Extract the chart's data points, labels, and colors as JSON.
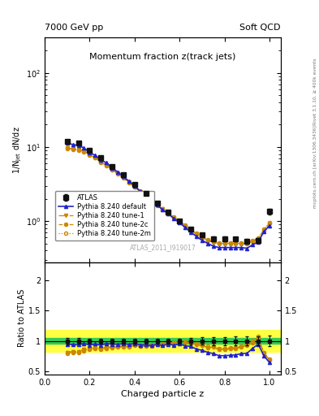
{
  "title": "Momentum fraction z(track jets)",
  "header_left": "7000 GeV pp",
  "header_right": "Soft QCD",
  "ylabel_main": "1/N$_\\mathrm{jet}$ dN/dz",
  "ylabel_ratio": "Ratio to ATLAS",
  "xlabel": "Charged particle z",
  "right_label_top": "Rivet 3.1.10, ≥ 400k events",
  "right_label_bottom": "mcplots.cern.ch [arXiv:1306.3436]",
  "watermark": "ATLAS_2011_I919017",
  "ylim_main": [
    0.28,
    300
  ],
  "ylim_ratio": [
    0.45,
    2.3
  ],
  "xlim": [
    0.0,
    1.05
  ],
  "atlas_x": [
    0.1,
    0.15,
    0.2,
    0.25,
    0.3,
    0.35,
    0.4,
    0.45,
    0.5,
    0.55,
    0.6,
    0.65,
    0.7,
    0.75,
    0.8,
    0.85,
    0.9,
    0.95,
    1.0
  ],
  "atlas_y": [
    11.8,
    11.2,
    9.0,
    7.2,
    5.5,
    4.2,
    3.1,
    2.35,
    1.75,
    1.32,
    1.0,
    0.78,
    0.65,
    0.58,
    0.58,
    0.57,
    0.54,
    0.55,
    1.35
  ],
  "atlas_yerr": [
    0.6,
    0.5,
    0.35,
    0.28,
    0.22,
    0.16,
    0.12,
    0.09,
    0.07,
    0.05,
    0.04,
    0.04,
    0.04,
    0.04,
    0.04,
    0.04,
    0.04,
    0.04,
    0.12
  ],
  "py_def_x": [
    0.1,
    0.125,
    0.15,
    0.175,
    0.2,
    0.225,
    0.25,
    0.275,
    0.3,
    0.325,
    0.35,
    0.375,
    0.4,
    0.425,
    0.45,
    0.475,
    0.5,
    0.525,
    0.55,
    0.575,
    0.6,
    0.625,
    0.65,
    0.675,
    0.7,
    0.725,
    0.75,
    0.775,
    0.8,
    0.825,
    0.85,
    0.875,
    0.9,
    0.925,
    0.95,
    0.975,
    1.0
  ],
  "py_def_y": [
    11.2,
    10.8,
    10.5,
    9.7,
    8.4,
    7.7,
    6.7,
    6.1,
    5.2,
    4.6,
    4.0,
    3.45,
    2.97,
    2.55,
    2.2,
    1.9,
    1.65,
    1.42,
    1.25,
    1.08,
    0.95,
    0.82,
    0.71,
    0.62,
    0.55,
    0.5,
    0.46,
    0.44,
    0.44,
    0.44,
    0.44,
    0.44,
    0.43,
    0.48,
    0.52,
    0.72,
    0.87
  ],
  "py_t1_x": [
    0.1,
    0.125,
    0.15,
    0.175,
    0.2,
    0.225,
    0.25,
    0.275,
    0.3,
    0.325,
    0.35,
    0.375,
    0.4,
    0.425,
    0.45,
    0.475,
    0.5,
    0.525,
    0.55,
    0.575,
    0.6,
    0.625,
    0.65,
    0.675,
    0.7,
    0.725,
    0.75,
    0.775,
    0.8,
    0.825,
    0.85,
    0.875,
    0.9,
    0.925,
    0.95,
    0.975,
    1.0
  ],
  "py_t1_y": [
    9.6,
    9.5,
    9.2,
    8.7,
    7.8,
    7.2,
    6.3,
    5.7,
    4.95,
    4.4,
    3.85,
    3.35,
    2.9,
    2.5,
    2.18,
    1.9,
    1.66,
    1.45,
    1.28,
    1.12,
    1.0,
    0.87,
    0.76,
    0.67,
    0.6,
    0.55,
    0.52,
    0.5,
    0.5,
    0.5,
    0.5,
    0.5,
    0.5,
    0.54,
    0.58,
    0.76,
    0.93
  ],
  "py_t2c_x": [
    0.1,
    0.125,
    0.15,
    0.175,
    0.2,
    0.225,
    0.25,
    0.275,
    0.3,
    0.325,
    0.35,
    0.375,
    0.4,
    0.425,
    0.45,
    0.475,
    0.5,
    0.525,
    0.55,
    0.575,
    0.6,
    0.625,
    0.65,
    0.675,
    0.7,
    0.725,
    0.75,
    0.775,
    0.8,
    0.825,
    0.85,
    0.875,
    0.9,
    0.925,
    0.95,
    0.975,
    1.0
  ],
  "py_t2c_y": [
    9.4,
    9.3,
    9.0,
    8.5,
    7.7,
    7.1,
    6.2,
    5.6,
    4.88,
    4.35,
    3.8,
    3.3,
    2.87,
    2.48,
    2.15,
    1.88,
    1.64,
    1.44,
    1.27,
    1.11,
    0.99,
    0.87,
    0.76,
    0.67,
    0.6,
    0.55,
    0.52,
    0.5,
    0.5,
    0.5,
    0.5,
    0.5,
    0.5,
    0.53,
    0.57,
    0.75,
    0.93
  ],
  "py_t2m_x": [
    0.1,
    0.125,
    0.15,
    0.175,
    0.2,
    0.225,
    0.25,
    0.275,
    0.3,
    0.325,
    0.35,
    0.375,
    0.4,
    0.425,
    0.45,
    0.475,
    0.5,
    0.525,
    0.55,
    0.575,
    0.6,
    0.625,
    0.65,
    0.675,
    0.7,
    0.725,
    0.75,
    0.775,
    0.8,
    0.825,
    0.85,
    0.875,
    0.9,
    0.925,
    0.95,
    0.975,
    1.0
  ],
  "py_t2m_y": [
    9.6,
    9.5,
    9.2,
    8.7,
    7.85,
    7.25,
    6.32,
    5.72,
    4.97,
    4.42,
    3.87,
    3.36,
    2.91,
    2.51,
    2.19,
    1.91,
    1.67,
    1.46,
    1.29,
    1.13,
    1.01,
    0.88,
    0.77,
    0.68,
    0.61,
    0.56,
    0.53,
    0.51,
    0.51,
    0.51,
    0.51,
    0.51,
    0.51,
    0.55,
    0.59,
    0.77,
    0.95
  ],
  "color_atlas": "#111111",
  "color_pythia_default": "#2222cc",
  "color_pythia_tune1": "#cc8800",
  "color_pythia_tune2c": "#cc8800",
  "color_pythia_tune2m": "#cc8800",
  "band_green_inner": 0.05,
  "band_yellow_outer": 0.18
}
